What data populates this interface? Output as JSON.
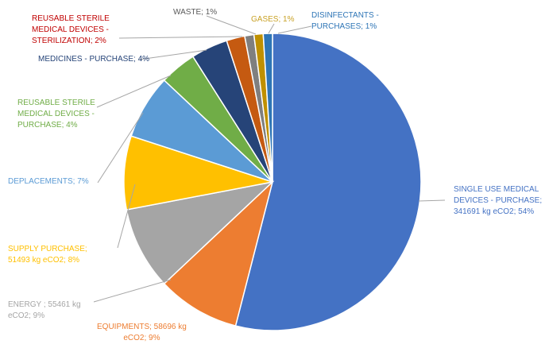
{
  "chart_data": {
    "type": "pie",
    "start_angle_deg": 0,
    "direction": "clockwise",
    "slices": [
      {
        "label": "SINGLE USE MEDICAL DEVICES - PURCHASE",
        "value": 341691,
        "percent": 54,
        "color": "#4472C4",
        "label_lines": [
          "SINGLE USE MEDICAL",
          "DEVICES - PURCHASE;",
          "341691 kg eCO2; 54%"
        ]
      },
      {
        "label": "EQUIPMENTS",
        "value": 58696,
        "percent": 9,
        "color": "#ED7D31",
        "label_lines": [
          "EQUIPMENTS; 58696 kg",
          "eCO2; 9%"
        ]
      },
      {
        "label": "ENERGY",
        "value": 55461,
        "percent": 9,
        "color": "#A5A5A5",
        "label_lines": [
          "ENERGY ; 55461 kg",
          "eCO2; 9%"
        ]
      },
      {
        "label": "SUPPLY PURCHASE",
        "value": 51493,
        "percent": 8,
        "color": "#FFC000",
        "label_lines": [
          "SUPPLY PURCHASE;",
          "51493 kg eCO2; 8%"
        ]
      },
      {
        "label": "DEPLACEMENTS",
        "percent": 7,
        "color": "#5B9BD5",
        "label_lines": [
          "DEPLACEMENTS; 7%"
        ]
      },
      {
        "label": "REUSABLE STERILE MEDICAL DEVICES - PURCHASE",
        "percent": 4,
        "color": "#70AD47",
        "label_lines": [
          "REUSABLE STERILE",
          "MEDICAL DEVICES -",
          "PURCHASE; 4%"
        ]
      },
      {
        "label": "MEDICINES - PURCHASE",
        "percent": 4,
        "color": "#264478",
        "label_lines": [
          "MEDICINES - PURCHASE; 4%"
        ]
      },
      {
        "label": "REUSABLE STERILE MEDICAL DEVICES - STERILIZATION",
        "percent": 2,
        "color": "#C55A11",
        "label_lines": [
          "REUSABLE STERILE",
          "MEDICAL DEVICES -",
          "STERILIZATION; 2%"
        ],
        "label_color": "#C00000"
      },
      {
        "label": "WASTE",
        "percent": 1,
        "color": "#7F7F7F",
        "label_lines": [
          "WASTE; 1%"
        ],
        "label_color": "#595959"
      },
      {
        "label": "GASES",
        "percent": 1,
        "color": "#BF9000",
        "label_lines": [
          "GASES; 1%"
        ],
        "label_color": "#C9A227"
      },
      {
        "label": "DISINFECTANTS - PURCHASES",
        "percent": 1,
        "color": "#2E75B6",
        "label_lines": [
          "DISINFECTANTS -",
          "PURCHASES; 1%"
        ]
      }
    ],
    "title": "",
    "legend": "none"
  }
}
